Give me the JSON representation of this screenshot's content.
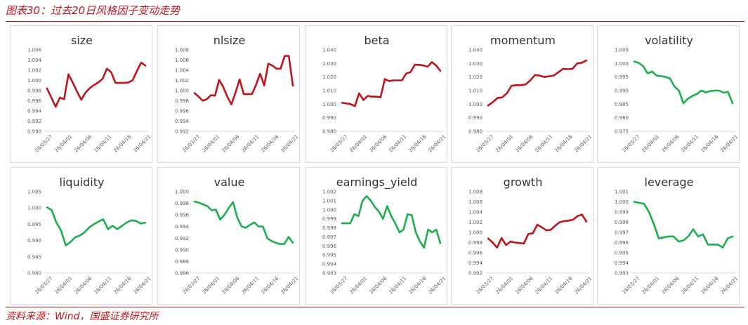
{
  "header": {
    "title": "图表30：过去20日风格因子变动走势"
  },
  "footer": {
    "source": "资料来源：Wind，国盛证券研究所"
  },
  "colors": {
    "up": "#c0141b",
    "down": "#1bb04b",
    "accent": "#c0141b"
  },
  "chart_data": [
    {
      "type": "line",
      "title": "size",
      "color": "#c0141b",
      "ylim": [
        0.99,
        1.006
      ],
      "yticks": [
        "1.006",
        "1.004",
        "1.002",
        "1.000",
        "0.998",
        "0.996",
        "0.994",
        "0.992",
        "0.990"
      ],
      "xticks": [
        "26/03/27",
        "26/04/01",
        "26/04/06",
        "26/04/11",
        "26/04/16",
        "26/04/21"
      ],
      "values": [
        0.9984,
        0.9966,
        0.9948,
        0.9966,
        0.9963,
        1.0012,
        0.9996,
        0.9978,
        0.9962,
        0.9976,
        0.9985,
        0.9991,
        0.9996,
        1.0003,
        1.0023,
        1.0016,
        0.9995,
        0.9995,
        0.9995,
        0.9996,
        1.0,
        1.0018,
        1.0035,
        1.0029
      ]
    },
    {
      "type": "line",
      "title": "nlsize",
      "color": "#c0141b",
      "ylim": [
        0.992,
        1.008
      ],
      "yticks": [
        "1.008",
        "1.006",
        "1.004",
        "1.002",
        "1.000",
        "0.998",
        "0.996",
        "0.994",
        "0.992"
      ],
      "xticks": [
        "26/03/27",
        "26/04/01",
        "26/04/06",
        "26/04/11",
        "26/04/16",
        "26/04/21"
      ],
      "values": [
        0.9995,
        0.9988,
        0.998,
        0.9983,
        0.9991,
        0.999,
        1.0021,
        1.0007,
        0.9988,
        0.9973,
        0.9996,
        1.0022,
        0.9993,
        0.9993,
        0.9993,
        1.0011,
        1.0033,
        1.001,
        1.0053,
        1.0049,
        1.0043,
        1.0043,
        1.0068,
        1.0068,
        1.001
      ]
    },
    {
      "type": "line",
      "title": "beta",
      "color": "#c0141b",
      "ylim": [
        0.98,
        1.04
      ],
      "yticks": [
        "1.040",
        "1.030",
        "1.020",
        "1.010",
        "1.000",
        "0.990",
        "0.980"
      ],
      "xticks": [
        "26/03/27",
        "26/04/01",
        "26/04/06",
        "26/04/11",
        "26/04/16",
        "26/04/21"
      ],
      "values": [
        1.001,
        1.0005,
        1.0,
        0.9985,
        1.008,
        1.003,
        1.006,
        1.0055,
        1.0055,
        1.005,
        1.0185,
        1.017,
        1.0175,
        1.0175,
        1.0175,
        1.0225,
        1.0235,
        1.029,
        1.029,
        1.0285,
        1.0275,
        1.031,
        1.0285,
        1.0245
      ]
    },
    {
      "type": "line",
      "title": "momentum",
      "color": "#c0141b",
      "ylim": [
        0.98,
        1.04
      ],
      "yticks": [
        "1.040",
        "1.030",
        "1.020",
        "1.010",
        "1.000",
        "0.990",
        "0.980"
      ],
      "xticks": [
        "26/03/27",
        "26/04/01",
        "26/04/06",
        "26/04/11",
        "26/04/16",
        "26/04/21"
      ],
      "values": [
        0.999,
        1.0015,
        1.0045,
        1.005,
        1.008,
        1.0135,
        1.014,
        1.014,
        1.0145,
        1.0175,
        1.0215,
        1.021,
        1.02,
        1.0205,
        1.021,
        1.0235,
        1.026,
        1.0258,
        1.026,
        1.03,
        1.0305,
        1.0322
      ]
    },
    {
      "type": "line",
      "title": "volatility",
      "color": "#1bb04b",
      "ylim": [
        0.975,
        1.005
      ],
      "yticks": [
        "1.005",
        "1.000",
        "0.995",
        "0.990",
        "0.985",
        "0.980",
        "0.975"
      ],
      "xticks": [
        "26/03/27",
        "26/04/01",
        "26/04/06",
        "26/04/11",
        "26/04/16",
        "26/04/21"
      ],
      "values": [
        1.0007,
        1.0002,
        0.999,
        0.9963,
        0.997,
        0.9955,
        0.9953,
        0.995,
        0.9945,
        0.9915,
        0.99,
        0.9853,
        0.987,
        0.988,
        0.9887,
        0.99,
        0.9893,
        0.9898,
        0.99,
        0.99,
        0.9892,
        0.9895,
        0.9853
      ]
    },
    {
      "type": "line",
      "title": "liquidity",
      "color": "#1bb04b",
      "ylim": [
        0.98,
        1.005
      ],
      "yticks": [
        "1.005",
        "1.000",
        "0.995",
        "0.990",
        "0.985",
        "0.980"
      ],
      "xticks": [
        "26/03/27",
        "26/04/01",
        "26/04/06",
        "26/04/11",
        "26/04/16",
        "26/04/21"
      ],
      "values": [
        1.0002,
        0.9993,
        0.9955,
        0.993,
        0.9885,
        0.9895,
        0.991,
        0.9915,
        0.9925,
        0.994,
        0.995,
        0.9958,
        0.9965,
        0.9935,
        0.9945,
        0.9935,
        0.9945,
        0.9955,
        0.9962,
        0.996,
        0.9952,
        0.9955
      ]
    },
    {
      "type": "line",
      "title": "value",
      "color": "#1bb04b",
      "ylim": [
        0.986,
        1.0
      ],
      "yticks": [
        "1.000",
        "0.998",
        "0.996",
        "0.994",
        "0.992",
        "0.990",
        "0.988",
        "0.986"
      ],
      "xticks": [
        "26/03/27",
        "26/04/01",
        "26/04/06",
        "26/04/11",
        "26/04/16",
        "26/04/21"
      ],
      "values": [
        0.9983,
        0.9981,
        0.9978,
        0.9975,
        0.9968,
        0.9969,
        0.9952,
        0.996,
        0.9972,
        0.9982,
        0.9955,
        0.994,
        0.9938,
        0.9943,
        0.9947,
        0.994,
        0.994,
        0.992,
        0.9915,
        0.9912,
        0.991,
        0.991,
        0.9922,
        0.9912
      ]
    },
    {
      "type": "line",
      "title": "earnings_yield",
      "color": "#1bb04b",
      "ylim": [
        0.993,
        1.002
      ],
      "yticks": [
        "1.002",
        "1.001",
        "1.000",
        "0.999",
        "0.998",
        "0.997",
        "0.996",
        "0.995",
        "0.994",
        "0.993"
      ],
      "xticks": [
        "26/03/27",
        "26/04/01",
        "26/04/06",
        "26/04/11",
        "26/04/16",
        "26/04/21"
      ],
      "values": [
        0.9985,
        0.9985,
        0.9985,
        0.9995,
        0.9993,
        1.001,
        1.0015,
        1.001,
        1.0003,
        0.9998,
        0.999,
        1.0004,
        0.9993,
        0.9985,
        0.9975,
        0.9978,
        0.9995,
        0.9994,
        0.9975,
        0.9965,
        0.9958,
        0.9978,
        0.9975,
        0.9978,
        0.9963
      ]
    },
    {
      "type": "line",
      "title": "growth",
      "color": "#c0141b",
      "ylim": [
        0.992,
        1.008
      ],
      "yticks": [
        "1.008",
        "1.006",
        "1.004",
        "1.002",
        "1.000",
        "0.998",
        "0.996",
        "0.994",
        "0.992"
      ],
      "xticks": [
        "26/03/27",
        "26/04/01",
        "26/04/06",
        "26/04/11",
        "26/04/16",
        "26/04/21"
      ],
      "values": [
        0.9988,
        0.998,
        0.997,
        0.9989,
        0.9975,
        0.9982,
        0.998,
        0.9979,
        0.9978,
        0.9997,
        0.9998,
        1.0015,
        1.001,
        1.0004,
        1.0005,
        1.0013,
        1.002,
        1.0022,
        1.0023,
        1.0025,
        1.0032,
        1.0035,
        1.0021
      ]
    },
    {
      "type": "line",
      "title": "leverage",
      "color": "#1bb04b",
      "ylim": [
        0.993,
        1.001
      ],
      "yticks": [
        "1.001",
        "1.000",
        "0.999",
        "0.998",
        "0.997",
        "0.996",
        "0.995",
        "0.994",
        "0.993"
      ],
      "xticks": [
        "26/03/27",
        "26/04/01",
        "26/04/06",
        "26/04/11",
        "26/04/16",
        "26/04/21"
      ],
      "values": [
        1.0,
        0.9999,
        0.9998,
        0.999,
        0.9978,
        0.9964,
        0.9965,
        0.9966,
        0.9966,
        0.9961,
        0.9962,
        0.9966,
        0.9973,
        0.9966,
        0.9968,
        0.9958,
        0.9958,
        0.9958,
        0.9955,
        0.9964,
        0.9966
      ]
    }
  ]
}
